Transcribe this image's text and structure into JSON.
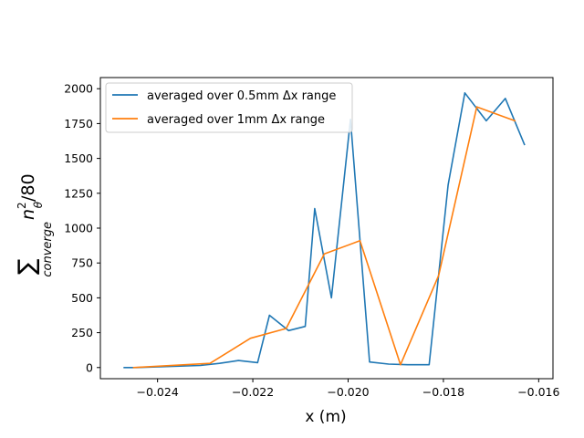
{
  "chart_data": {
    "type": "line",
    "xlabel": "x (m)",
    "ylabel_parts": {
      "sum": "∑",
      "subscript": "converge",
      "var": "n",
      "sup": "2",
      "sub2": "θ",
      "tail": "/80"
    },
    "xlim": [
      -0.0252,
      -0.0157
    ],
    "ylim": [
      -80,
      2080
    ],
    "x_ticks": [
      -0.024,
      -0.022,
      -0.02,
      -0.018,
      -0.016
    ],
    "x_tick_labels": [
      "−0.024",
      "−0.022",
      "−0.020",
      "−0.018",
      "−0.016"
    ],
    "y_ticks": [
      0,
      250,
      500,
      750,
      1000,
      1250,
      1500,
      1750,
      2000
    ],
    "y_tick_labels": [
      "0",
      "250",
      "500",
      "750",
      "1000",
      "1250",
      "1500",
      "1750",
      "2000"
    ],
    "grid": false,
    "legend_position": "top-left",
    "series": [
      {
        "name": "averaged over 0.5mm Δx range",
        "color": "#1f77b4",
        "x": [
          -0.0247,
          -0.02445,
          -0.0231,
          -0.0227,
          -0.0223,
          -0.0219,
          -0.02165,
          -0.02125,
          -0.0209,
          -0.0207,
          -0.02035,
          -0.01995,
          -0.01955,
          -0.01915,
          -0.01875,
          -0.0183,
          -0.0179,
          -0.01755,
          -0.0171,
          -0.0167,
          -0.0163
        ],
        "y": [
          0,
          0,
          15,
          30,
          50,
          35,
          375,
          265,
          295,
          1140,
          500,
          1780,
          40,
          25,
          20,
          20,
          1310,
          1970,
          1770,
          1930,
          1600
        ]
      },
      {
        "name": "averaged over 1mm Δx range",
        "color": "#ff7f0e",
        "x": [
          -0.0245,
          -0.0229,
          -0.02205,
          -0.0213,
          -0.0205,
          -0.01975,
          -0.0189,
          -0.0181,
          -0.0173,
          -0.0165
        ],
        "y": [
          0,
          30,
          210,
          280,
          815,
          910,
          20,
          660,
          1870,
          1770
        ]
      }
    ]
  }
}
